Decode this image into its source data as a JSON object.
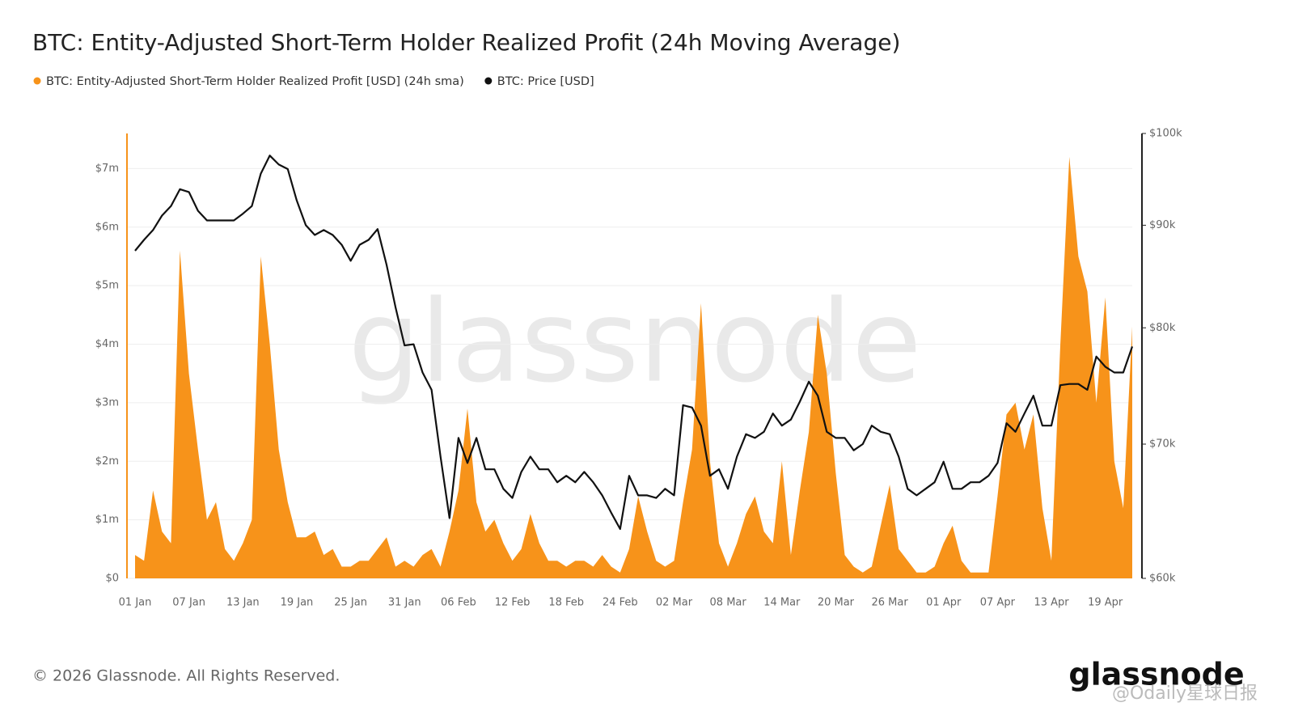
{
  "chart_data": {
    "type": "area",
    "title": "BTC: Entity-Adjusted Short-Term Holder Realized Profit (24h Moving Average)",
    "watermark": "glassnode",
    "categories": [
      "01 Jan",
      null,
      null,
      null,
      null,
      null,
      "07 Jan",
      null,
      null,
      null,
      null,
      null,
      "13 Jan",
      null,
      null,
      null,
      null,
      null,
      "19 Jan",
      null,
      null,
      null,
      null,
      null,
      "25 Jan",
      null,
      null,
      null,
      null,
      null,
      "31 Jan",
      null,
      null,
      null,
      null,
      null,
      "06 Feb",
      null,
      null,
      null,
      null,
      null,
      "12 Feb",
      null,
      null,
      null,
      null,
      null,
      "18 Feb",
      null,
      null,
      null,
      null,
      null,
      "24 Feb",
      null,
      null,
      null,
      null,
      null,
      "02 Mar",
      null,
      null,
      null,
      null,
      null,
      "08 Mar",
      null,
      null,
      null,
      null,
      null,
      "14 Mar",
      null,
      null,
      null,
      null,
      null,
      "20 Mar",
      null,
      null,
      null,
      null,
      null,
      "26 Mar",
      null,
      null,
      null,
      null,
      null,
      "01 Apr",
      null,
      null,
      null,
      null,
      null,
      "07 Apr",
      null,
      null,
      null,
      null,
      null,
      "13 Apr",
      null,
      null,
      null,
      null,
      null,
      "19 Apr",
      null,
      null,
      null
    ],
    "series": [
      {
        "name": "BTC: Entity-Adjusted Short-Term Holder Realized Profit [USD] (24h sma)",
        "color": "#f7931a",
        "type": "area",
        "values": [
          0.4,
          0.3,
          1.5,
          0.8,
          0.6,
          5.6,
          3.5,
          2.2,
          1.0,
          1.3,
          0.5,
          0.3,
          0.6,
          1.0,
          5.5,
          4.0,
          2.2,
          1.3,
          0.7,
          0.7,
          0.8,
          0.4,
          0.5,
          0.2,
          0.2,
          0.3,
          0.3,
          0.5,
          0.7,
          0.2,
          0.3,
          0.2,
          0.4,
          0.5,
          0.2,
          0.8,
          1.5,
          2.9,
          1.3,
          0.8,
          1.0,
          0.6,
          0.3,
          0.5,
          1.1,
          0.6,
          0.3,
          0.3,
          0.2,
          0.3,
          0.3,
          0.2,
          0.4,
          0.2,
          0.1,
          0.5,
          1.4,
          0.8,
          0.3,
          0.2,
          0.3,
          1.3,
          2.2,
          4.7,
          2.0,
          0.6,
          0.2,
          0.6,
          1.1,
          1.4,
          0.8,
          0.6,
          2.0,
          0.4,
          1.5,
          2.5,
          4.5,
          3.5,
          1.8,
          0.4,
          0.2,
          0.1,
          0.2,
          0.9,
          1.6,
          0.5,
          0.3,
          0.1,
          0.1,
          0.2,
          0.6,
          0.9,
          0.3,
          0.1,
          0.1,
          0.1,
          1.4,
          2.8,
          3.0,
          2.2,
          2.8,
          1.2,
          0.3,
          4.0,
          7.2,
          5.5,
          4.9,
          3.0,
          4.8,
          2.0,
          1.2,
          4.3
        ]
      },
      {
        "name": "BTC: Price [USD]",
        "color": "#111111",
        "type": "line",
        "axis": "y2",
        "values": [
          87.4,
          88.5,
          89.5,
          91,
          92,
          93.8,
          93.5,
          91.5,
          90.5,
          90.5,
          90.5,
          90.5,
          91.2,
          92,
          95.5,
          97.5,
          96.5,
          96,
          92.6,
          90,
          89,
          89.5,
          89,
          88,
          86.4,
          88,
          88.5,
          89.6,
          86,
          81.9,
          78.4,
          78.5,
          76,
          74.5,
          69,
          64.3,
          70.5,
          68.5,
          70.5,
          68,
          68,
          66.5,
          65.8,
          67.8,
          69,
          68,
          68,
          67,
          67.5,
          67,
          67.8,
          67,
          66,
          64.7,
          63.5,
          67.5,
          66,
          66,
          65.8,
          66.5,
          66,
          73.2,
          73,
          71.5,
          67.5,
          68,
          66.5,
          69,
          70.8,
          70.5,
          71,
          72.5,
          71.5,
          72,
          73.5,
          75.2,
          74,
          71,
          70.5,
          70.5,
          69.5,
          70,
          71.5,
          71,
          70.8,
          69,
          66.5,
          66,
          66.5,
          67,
          68.6,
          66.5,
          66.5,
          67,
          67,
          67.5,
          68.5,
          71.7,
          71,
          72.5,
          74,
          71.5,
          71.5,
          74.9,
          75,
          75,
          74.5,
          77.4,
          76.5,
          76,
          76,
          78.3
        ]
      }
    ],
    "ylim": [
      0,
      7.6
    ],
    "yticks": [
      {
        "value": 0,
        "label": "$0"
      },
      {
        "value": 1,
        "label": "$1m"
      },
      {
        "value": 2,
        "label": "$2m"
      },
      {
        "value": 3,
        "label": "$3m"
      },
      {
        "value": 4,
        "label": "$4m"
      },
      {
        "value": 5,
        "label": "$5m"
      },
      {
        "value": 6,
        "label": "$6m"
      },
      {
        "value": 7,
        "label": "$7m"
      }
    ],
    "y2lim": [
      60,
      100
    ],
    "y2log": true,
    "y2ticks": [
      {
        "value": 60,
        "label": "$60k"
      },
      {
        "value": 70,
        "label": "$70k"
      },
      {
        "value": 80,
        "label": "$80k"
      },
      {
        "value": 90,
        "label": "$90k"
      },
      {
        "value": 100,
        "label": "$100k"
      }
    ],
    "grid": true
  },
  "footer": {
    "copyright": "© 2026 Glassnode. All Rights Reserved.",
    "logo": "glassnode",
    "source": "@Odaily星球日报"
  }
}
